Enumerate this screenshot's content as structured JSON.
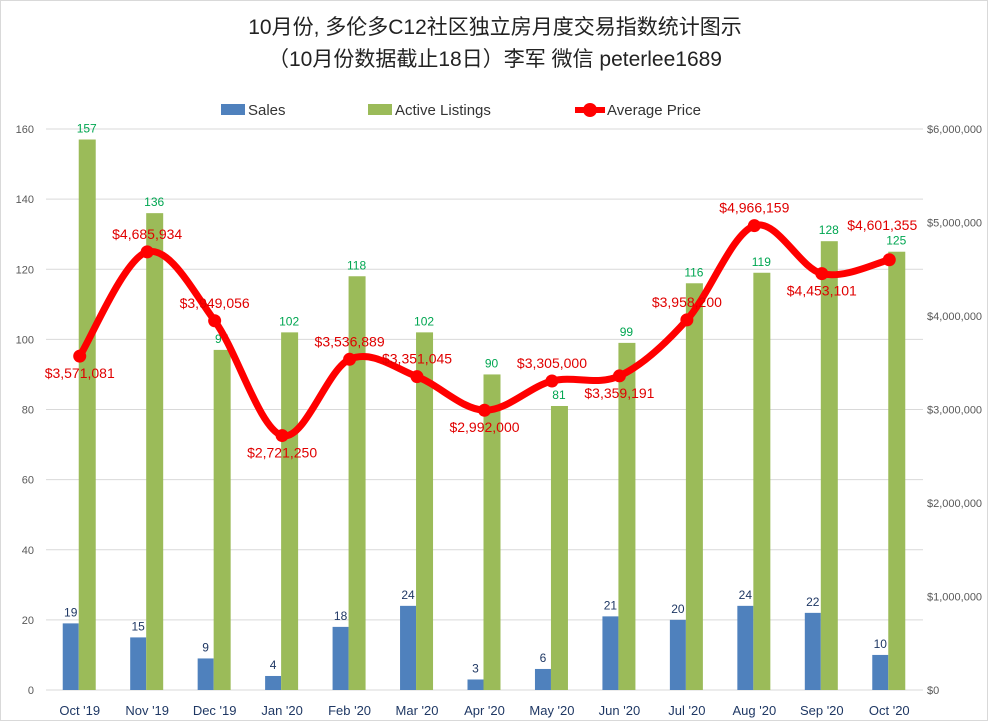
{
  "chart_data": {
    "type": "bar+line",
    "title": "10月份, 多伦多C12社区独立房月度交易指数统计图示",
    "subtitle": "（10月份数据截止18日）李军 微信  peterlee1689",
    "categories": [
      "Oct '19",
      "Nov '19",
      "Dec '19",
      "Jan '20",
      "Feb '20",
      "Mar '20",
      "Apr '20",
      "May '20",
      "Jun '20",
      "Jul '20",
      "Aug '20",
      "Sep '20",
      "Oct '20"
    ],
    "series": [
      {
        "name": "Sales",
        "type": "bar",
        "axis": "left",
        "color": "#4f81bd",
        "label_color": "#1f3864",
        "values": [
          19,
          15,
          9,
          4,
          18,
          24,
          3,
          6,
          21,
          20,
          24,
          22,
          10
        ]
      },
      {
        "name": "Active Listings",
        "type": "bar",
        "axis": "left",
        "color": "#9bbb59",
        "label_color": "#00a651",
        "values": [
          157,
          136,
          97,
          102,
          118,
          102,
          90,
          81,
          99,
          116,
          119,
          128,
          125
        ]
      },
      {
        "name": "Average Price",
        "type": "line",
        "axis": "right",
        "color": "#ff0000",
        "label_color": "#e00000",
        "values": [
          3571081,
          4685934,
          3949056,
          2721250,
          3536889,
          3351045,
          2992000,
          3305000,
          3359191,
          3958200,
          4966159,
          4453101,
          4601355
        ],
        "labels": [
          "$3,571,081",
          "$4,685,934",
          "$3,949,056",
          "$2,721,250",
          "$3,536,889",
          "$3,351,045",
          "$2,992,000",
          "$3,305,000",
          "$3,359,191",
          "$3,958,200",
          "$4,966,159",
          "$4,453,101",
          "$4,601,355"
        ],
        "label_placement": [
          "below",
          "above",
          "above",
          "below",
          "above",
          "above",
          "below",
          "above",
          "below",
          "above",
          "above",
          "below",
          "above"
        ]
      }
    ],
    "left_axis": {
      "ylim": [
        0,
        160
      ],
      "ticks": [
        "0",
        "20",
        "40",
        "60",
        "80",
        "100",
        "120",
        "140",
        "160"
      ]
    },
    "right_axis": {
      "ylim": [
        0,
        6000000
      ],
      "ticks": [
        "$0",
        "$1,000,000",
        "$2,000,000",
        "$3,000,000",
        "$4,000,000",
        "$5,000,000",
        "$6,000,000"
      ]
    },
    "grid": true,
    "legend": "top-center"
  }
}
